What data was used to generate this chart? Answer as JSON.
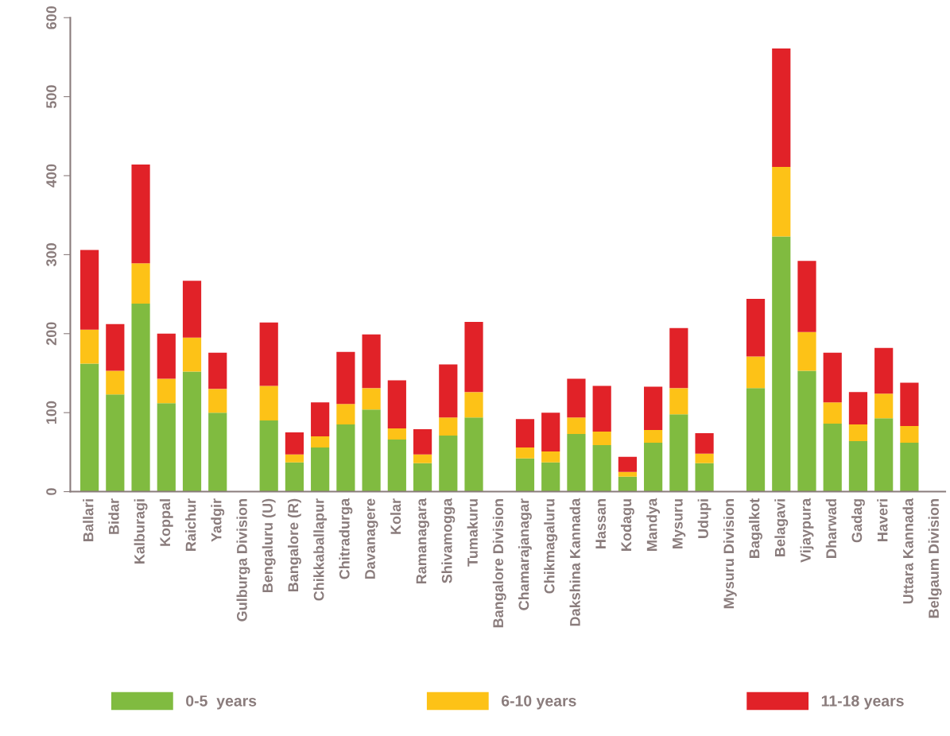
{
  "chart_data": {
    "type": "bar",
    "stacked": true,
    "categories": [
      "Ballari",
      "Bidar",
      "Kalburagi",
      "Koppal",
      "Raichur",
      "Yadgir",
      "Gulburga Division",
      "Bengaluru (U)",
      "Bangalore (R)",
      "Chikkaballapur",
      "Chitradurga",
      "Davanagere",
      "Kolar",
      "Ramanagara",
      "Shivamogga",
      "Tumakuru",
      "Bangalore Division",
      "Chamarajanagar",
      "Chikmagaluru",
      "Dakshina Kannada",
      "Hassan",
      "Kodagu",
      "Mandya",
      "Mysuru",
      "Udupi",
      "Mysuru Division",
      "Bagalkot",
      "Belagavi",
      "Vijaypura",
      "Dharwad",
      "Gadag",
      "Haveri",
      "Uttara Kannada",
      "Belgaum Division"
    ],
    "series": [
      {
        "name": "0-5  years",
        "color": "#80bb40",
        "values": [
          162,
          123,
          238,
          112,
          152,
          100,
          null,
          90,
          37,
          56,
          85,
          104,
          66,
          36,
          71,
          94,
          null,
          42,
          37,
          73,
          59,
          19,
          62,
          98,
          36,
          null,
          131,
          323,
          153,
          86,
          64,
          93,
          62,
          null
        ]
      },
      {
        "name": "6-10 years",
        "color": "#fdc217",
        "values": [
          43,
          30,
          51,
          31,
          43,
          30,
          null,
          44,
          10,
          14,
          26,
          27,
          14,
          11,
          23,
          32,
          null,
          14,
          14,
          21,
          17,
          6,
          16,
          33,
          12,
          null,
          40,
          88,
          49,
          27,
          21,
          31,
          21,
          null
        ]
      },
      {
        "name": "11-18 years",
        "color": "#e12228",
        "values": [
          101,
          59,
          125,
          57,
          72,
          46,
          null,
          80,
          28,
          43,
          66,
          68,
          61,
          32,
          67,
          89,
          null,
          36,
          49,
          49,
          58,
          19,
          55,
          76,
          26,
          null,
          73,
          150,
          90,
          63,
          41,
          58,
          55,
          null
        ]
      }
    ],
    "ylim": [
      0,
      600
    ],
    "yticks": [
      0,
      100,
      200,
      300,
      400,
      500,
      600
    ],
    "grid": false,
    "legend": "bottom"
  }
}
